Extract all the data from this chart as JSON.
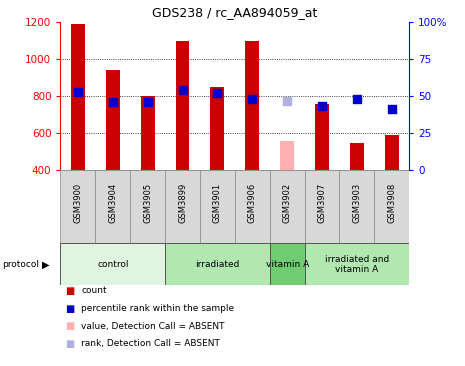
{
  "title": "GDS238 / rc_AA894059_at",
  "samples": [
    "GSM3900",
    "GSM3904",
    "GSM3905",
    "GSM3899",
    "GSM3901",
    "GSM3906",
    "GSM3902",
    "GSM3907",
    "GSM3903",
    "GSM3908"
  ],
  "counts": [
    1190,
    940,
    800,
    1095,
    850,
    1095,
    555,
    755,
    545,
    590
  ],
  "percentiles": [
    53,
    46,
    46,
    54,
    52,
    48,
    47,
    43,
    48,
    41
  ],
  "absent": [
    false,
    false,
    false,
    false,
    false,
    false,
    true,
    false,
    false,
    false
  ],
  "baseline": 400,
  "ylim_left": [
    400,
    1200
  ],
  "ylim_right": [
    0,
    100
  ],
  "yticks_left": [
    400,
    600,
    800,
    1000,
    1200
  ],
  "yticks_right": [
    0,
    25,
    50,
    75,
    100
  ],
  "yticklabels_right": [
    "0",
    "25",
    "50",
    "75",
    "100%"
  ],
  "bar_color_present": "#cc0000",
  "bar_color_absent": "#ffb0b0",
  "dot_color_present": "#0000cc",
  "dot_color_absent": "#b0b0e0",
  "bg_color": "#d8d8d8",
  "group_data": [
    {
      "label": "control",
      "start": 0,
      "end": 2,
      "color": "#e0f5e0"
    },
    {
      "label": "irradiated",
      "start": 3,
      "end": 5,
      "color": "#b0e8b0"
    },
    {
      "label": "vitamin A",
      "start": 6,
      "end": 6,
      "color": "#70cc70"
    },
    {
      "label": "irradiated and\nvitamin A",
      "start": 7,
      "end": 9,
      "color": "#b0e8b0"
    }
  ],
  "protocol_label": "protocol",
  "legend_items": [
    {
      "label": "count",
      "color": "#cc0000"
    },
    {
      "label": "percentile rank within the sample",
      "color": "#0000cc"
    },
    {
      "label": "value, Detection Call = ABSENT",
      "color": "#ffb0b0"
    },
    {
      "label": "rank, Detection Call = ABSENT",
      "color": "#b0b0e0"
    }
  ],
  "bar_width": 0.4,
  "dot_size": 30,
  "grid_lines": [
    600,
    800,
    1000
  ]
}
